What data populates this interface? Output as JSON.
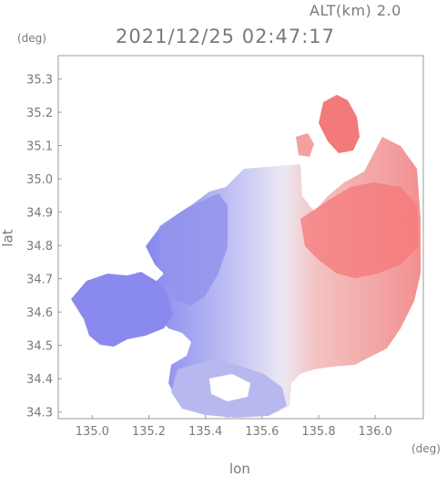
{
  "header": {
    "altitude_label": "ALT(km) 2.0",
    "timestamp": "2021/12/25 02:47:17"
  },
  "axes": {
    "lat_unit": "(deg)",
    "lon_unit": "(deg)",
    "lat_title": "lat",
    "lon_title": "lon",
    "lat_ticks": [
      "35.3",
      "35.2",
      "35.1",
      "35.0",
      "34.9",
      "34.8",
      "34.7",
      "34.6",
      "34.5",
      "34.4",
      "34.3"
    ],
    "lon_ticks": [
      "135.0",
      "135.2",
      "135.4",
      "135.6",
      "135.8",
      "136.0"
    ]
  },
  "map_view": {
    "lon_range": [
      134.88,
      136.17
    ],
    "lat_range": [
      34.28,
      35.37
    ],
    "color_scale": {
      "approaching": "#7f7ff0",
      "receding": "#f07070",
      "neutral": "#ffffff"
    }
  }
}
